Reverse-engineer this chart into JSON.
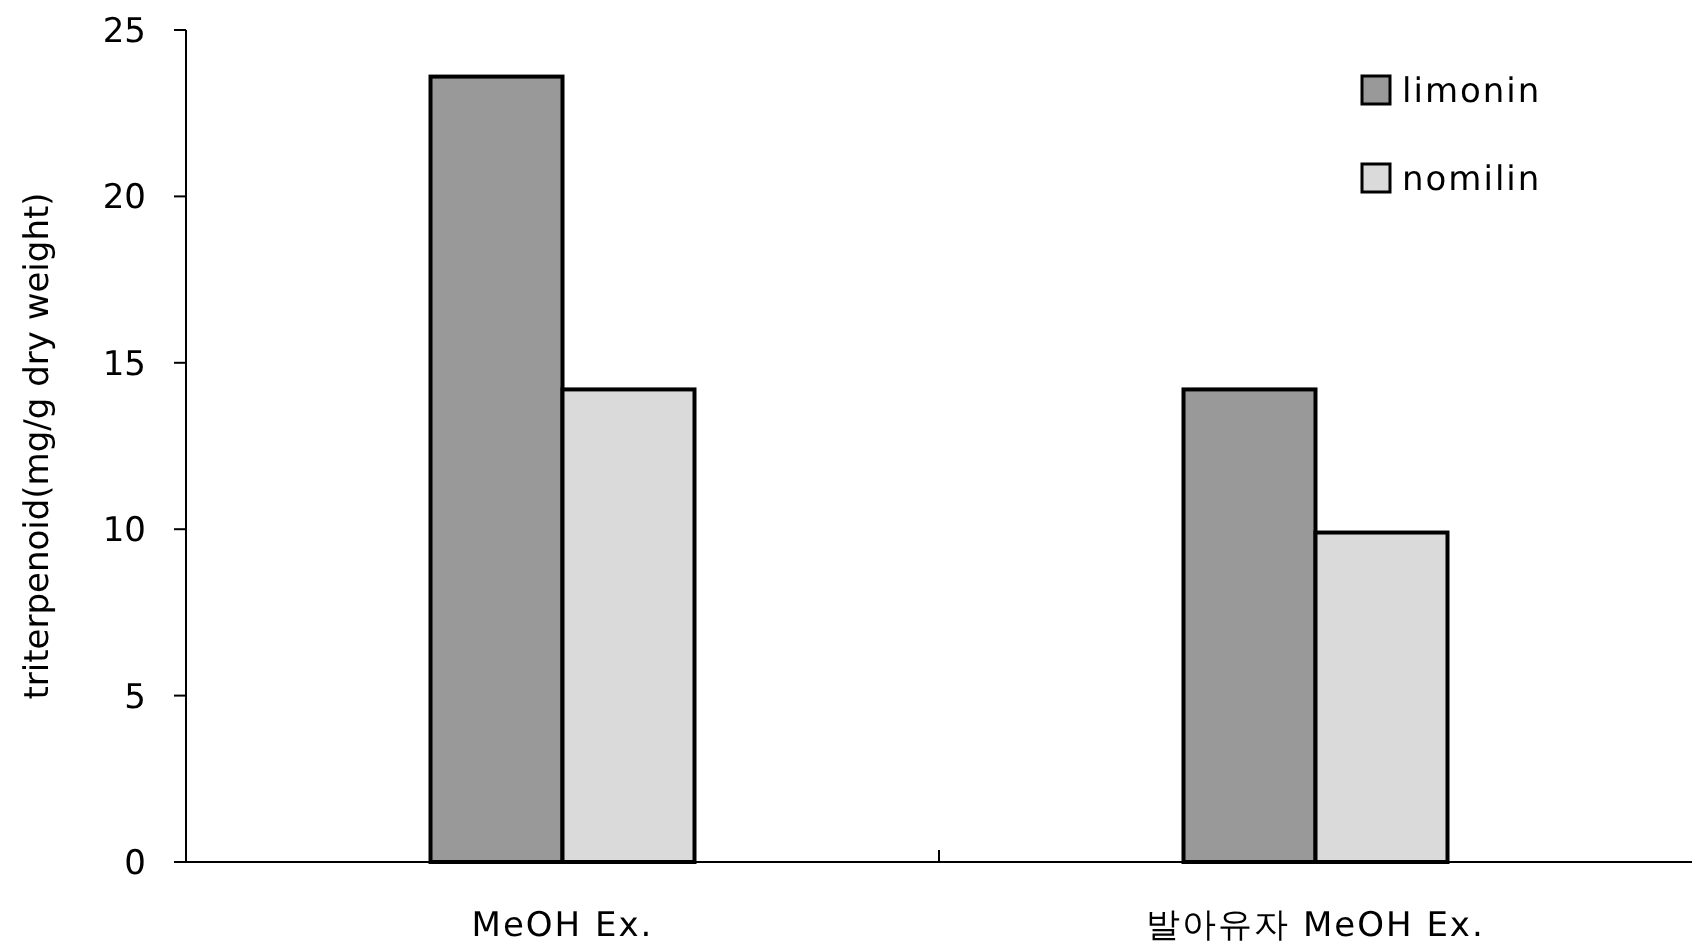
{
  "chart_data": {
    "type": "bar",
    "ylabel": "triterpenoid(mg/g dry weight)",
    "categories": [
      "MeOH Ex.",
      "발아유자 MeOH Ex."
    ],
    "series": [
      {
        "name": "limonin",
        "color": "#999999",
        "values": [
          23.6,
          14.2
        ]
      },
      {
        "name": "nomilin",
        "color": "#dadada",
        "values": [
          14.2,
          9.9
        ]
      }
    ],
    "ylim": [
      0,
      25
    ],
    "yticks": [
      0,
      5,
      10,
      15,
      20,
      25
    ],
    "grid": false,
    "legend": "top right"
  }
}
